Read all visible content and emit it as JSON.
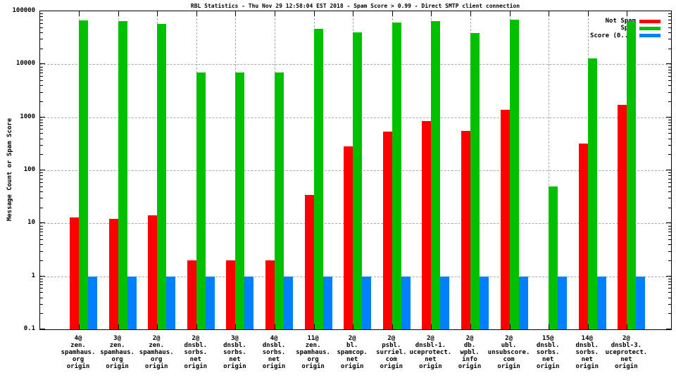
{
  "chart_data": {
    "type": "bar",
    "title": "RBL Statistics - Thu Nov 29 12:58:04 EST 2018 - Spam Score > 0.99 - Direct SMTP client connection",
    "xlabel": "",
    "ylabel": "Message Count or Spam Score",
    "y_scale": "log",
    "ylim": [
      0.1,
      100000
    ],
    "ytick_labels": [
      "0.1",
      "1",
      "10",
      "100",
      "1000",
      "10000",
      "100000"
    ],
    "grid": true,
    "legend_position": "top-right-inside",
    "background_color": "#ffffff",
    "grid_color": "#a8a8a8",
    "categories": [
      "4@\nzen.\nspamhaus.\norg\norigin",
      "3@\nzen.\nspamhaus.\norg\norigin",
      "2@\nzen.\nspamhaus.\norg\norigin",
      "2@\ndnsbl.\nsorbs.\nnet\norigin",
      "3@\ndnsbl.\nsorbs.\nnet\norigin",
      "4@\ndnsbl.\nsorbs.\nnet\norigin",
      "11@\nzen.\nspamhaus.\norg\norigin",
      "2@\nbl.\nspamcop.\nnet\norigin",
      "2@\npsbl.\nsurriel.\ncom\norigin",
      "2@\ndnsbl-1.\nuceprotect.\nnet\norigin",
      "2@\ndb.\nwpbl.\ninfo\norigin",
      "2@\nubl.\nunsubscore.\ncom\norigin",
      "15@\ndnsbl.\nsorbs.\nnet\norigin",
      "14@\ndnsbl.\nsorbs.\nnet\norigin",
      "2@\ndnsbl-3.\nuceprotect.\nnet\norigin"
    ],
    "series": [
      {
        "name": "Not Spam",
        "color": "#ff0000",
        "values": [
          13,
          12,
          14,
          2,
          2,
          2,
          34,
          280,
          530,
          840,
          560,
          1400,
          null,
          320,
          1700
        ]
      },
      {
        "name": "Spam",
        "color": "#00c000",
        "values": [
          68000,
          65000,
          58000,
          7000,
          7000,
          7000,
          46000,
          40000,
          62000,
          65000,
          39000,
          70000,
          50,
          13000,
          63000
        ]
      },
      {
        "name": "Score (0..1)",
        "color": "#0080ff",
        "values": [
          1,
          1,
          1,
          1,
          1,
          1,
          1,
          1,
          1,
          1,
          1,
          1,
          1,
          1,
          1
        ]
      }
    ]
  }
}
